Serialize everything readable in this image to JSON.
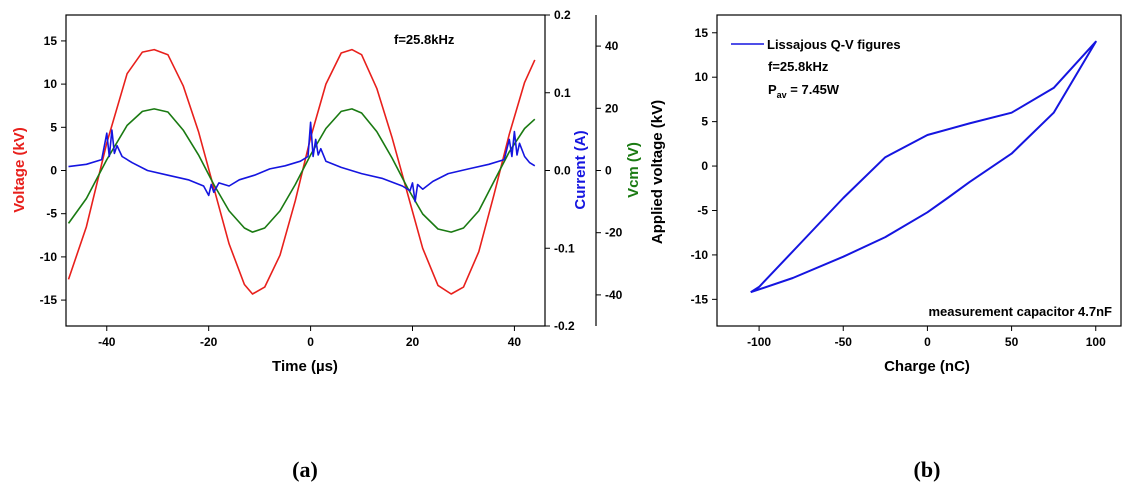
{
  "chart_data": [
    {
      "type": "line",
      "panel": "(a)",
      "annotation": "f=25.8kHz",
      "xlabel": "Time (µs)",
      "xlim": [
        -48,
        46
      ],
      "x_ticks": [
        -40,
        -20,
        0,
        20,
        40
      ],
      "grid": false,
      "axes": [
        {
          "id": "voltage",
          "label": "Voltage (kV)",
          "color": "#e8201c",
          "lim": [
            -18,
            18
          ],
          "ticks": [
            -15,
            -10,
            -5,
            0,
            5,
            10,
            15
          ],
          "side": "left"
        },
        {
          "id": "current",
          "label": "Current (A)",
          "color": "#1515e0",
          "lim": [
            -0.2,
            0.2
          ],
          "ticks": [
            -0.2,
            -0.1,
            0.0,
            0.1,
            0.2
          ],
          "tick_labels": [
            "-0.2",
            "-0.1",
            "0.0",
            "0.1",
            "0.2"
          ],
          "side": "right"
        },
        {
          "id": "vcm",
          "label": "Vcm (V)",
          "color": "#1a7a12",
          "lim": [
            -50,
            50
          ],
          "ticks": [
            -40,
            -20,
            0,
            20,
            40
          ],
          "side": "right-offset"
        }
      ],
      "series": [
        {
          "name": "Voltage",
          "axis": "voltage",
          "color": "#e8201c",
          "x": [
            -47.5,
            -44,
            -40,
            -36,
            -33,
            -30.7,
            -28,
            -25,
            -22,
            -19,
            -16,
            -13,
            -11.4,
            -9,
            -6,
            -3,
            0,
            3,
            6,
            8.1,
            10,
            13,
            16,
            19,
            22,
            25,
            27.6,
            30,
            33,
            36,
            39,
            42,
            44
          ],
          "values": [
            -12.6,
            -6.5,
            3.2,
            11.2,
            13.7,
            14.0,
            13.4,
            9.8,
            4.5,
            -2.0,
            -8.5,
            -13.2,
            -14.3,
            -13.5,
            -9.8,
            -3.5,
            3.8,
            10.0,
            13.6,
            14.0,
            13.4,
            9.5,
            3.8,
            -2.6,
            -9.0,
            -13.3,
            -14.3,
            -13.5,
            -9.4,
            -2.8,
            4.2,
            10.2,
            12.8
          ]
        },
        {
          "name": "Vcm",
          "axis": "vcm",
          "color": "#1a7a12",
          "x": [
            -47.5,
            -44,
            -40,
            -36,
            -33,
            -30.7,
            -28,
            -25,
            -22,
            -19,
            -16,
            -13,
            -11.4,
            -9,
            -6,
            -3,
            0,
            3,
            6,
            8.1,
            10,
            13,
            16,
            19,
            22,
            25,
            27.6,
            30,
            33,
            36,
            39,
            42,
            44
          ],
          "values": [
            -17.0,
            -9.0,
            3.5,
            14.5,
            19.0,
            19.8,
            18.8,
            13.0,
            5.0,
            -4.5,
            -13.0,
            -18.5,
            -19.8,
            -18.5,
            -13.0,
            -4.5,
            5.0,
            13.5,
            19.0,
            19.8,
            18.5,
            12.5,
            4.0,
            -5.5,
            -14.0,
            -18.8,
            -19.8,
            -18.5,
            -13.0,
            -3.5,
            6.0,
            13.5,
            16.5
          ]
        },
        {
          "name": "Current",
          "axis": "current",
          "color": "#1515e0",
          "x": [
            -47.5,
            -44,
            -41,
            -40,
            -39.5,
            -39,
            -38.5,
            -38,
            -37,
            -35,
            -32,
            -28,
            -24,
            -21,
            -20,
            -19.5,
            -19,
            -18,
            -16,
            -14,
            -11,
            -8,
            -5,
            -2,
            -0.5,
            0,
            0.5,
            1,
            1.5,
            2,
            3,
            6,
            10,
            14,
            18,
            19.5,
            20,
            20.5,
            21,
            22,
            24,
            27,
            31,
            35,
            38,
            39,
            39.5,
            40,
            40.5,
            41,
            42,
            43,
            44
          ],
          "values": [
            0.005,
            0.008,
            0.014,
            0.048,
            0.018,
            0.052,
            0.022,
            0.032,
            0.018,
            0.01,
            0.0,
            -0.006,
            -0.012,
            -0.02,
            -0.032,
            -0.018,
            -0.028,
            -0.016,
            -0.02,
            -0.012,
            -0.006,
            0.002,
            0.006,
            0.012,
            0.018,
            0.062,
            0.018,
            0.04,
            0.02,
            0.028,
            0.012,
            0.004,
            -0.004,
            -0.01,
            -0.02,
            -0.026,
            -0.016,
            -0.04,
            -0.018,
            -0.024,
            -0.014,
            -0.004,
            0.002,
            0.008,
            0.014,
            0.04,
            0.018,
            0.05,
            0.02,
            0.035,
            0.018,
            0.01,
            0.006
          ]
        }
      ]
    },
    {
      "type": "line",
      "panel": "(b)",
      "legend_entries": [
        "Lissajous Q-V figures"
      ],
      "annotations": [
        "f=25.8kHz",
        "P",
        "av",
        " = 7.45W",
        "measurement capacitor 4.7nF"
      ],
      "xlabel": "Charge (nC)",
      "ylabel": "Applied voltage (kV)",
      "xlim": [
        -125,
        115
      ],
      "ylim": [
        -18,
        17
      ],
      "x_ticks": [
        -100,
        -50,
        0,
        50,
        100
      ],
      "y_ticks": [
        -15,
        -10,
        -5,
        0,
        5,
        10,
        15
      ],
      "grid": false,
      "legend_position": "top-left",
      "series": [
        {
          "name": "Lissajous Q-V figures",
          "color": "#1515e0",
          "x": [
            -105,
            -80,
            -50,
            -25,
            0,
            12,
            25,
            50,
            75,
            100,
            75,
            50,
            25,
            0,
            -25,
            -50,
            -75,
            -100,
            -105
          ],
          "values": [
            -14.2,
            -12.6,
            -10.2,
            -8.0,
            -5.2,
            -3.6,
            -1.8,
            1.4,
            6.0,
            14.0,
            8.8,
            6.0,
            4.8,
            3.5,
            1.0,
            -3.6,
            -8.6,
            -13.6,
            -14.2
          ]
        }
      ]
    }
  ]
}
